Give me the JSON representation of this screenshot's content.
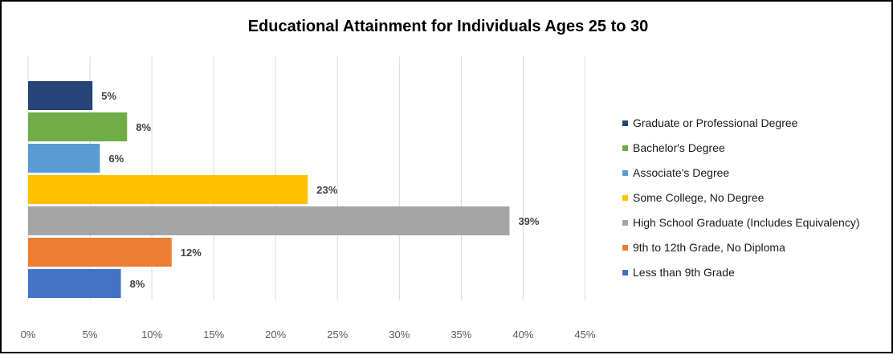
{
  "chart_data": {
    "type": "bar",
    "orientation": "horizontal",
    "title": "Educational Attainment for Individuals Ages 25 to 30",
    "xlim": [
      0,
      45
    ],
    "x_ticks": [
      "0%",
      "5%",
      "10%",
      "15%",
      "20%",
      "25%",
      "30%",
      "35%",
      "40%",
      "45%"
    ],
    "x_tick_values": [
      0,
      5,
      10,
      15,
      20,
      25,
      30,
      35,
      40,
      45
    ],
    "grid": "vertical",
    "legend_position": "right",
    "categories": [
      "Graduate or Professional Degree",
      "Bachelor's Degree",
      "Associate's Degree",
      "Some College, No Degree",
      "High School Graduate (Includes Equivalency)",
      "9th to 12th Grade, No Diploma",
      "Less than 9th Grade"
    ],
    "values": [
      5.2,
      8,
      5.8,
      22.6,
      38.9,
      11.6,
      7.5
    ],
    "labels": [
      "5%",
      "8%",
      "6%",
      "23%",
      "39%",
      "12%",
      "8%"
    ],
    "colors": [
      "#264478",
      "#70AD47",
      "#5B9BD5",
      "#FFC000",
      "#A5A5A5",
      "#ED7D31",
      "#4472C4"
    ]
  }
}
